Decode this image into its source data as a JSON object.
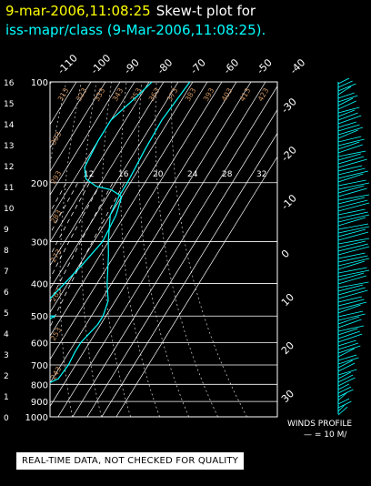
{
  "header": {
    "timestamp": "9-mar-2006,11:08:25",
    "plot_label": "Skew-t plot for",
    "station_line": "iss-mapr/class (9-Mar-2006,11:08:25)."
  },
  "disclaimer": "REAL-TIME DATA, NOT CHECKED FOR QUALITY",
  "winds_profile": {
    "label": "WINDS PROFILE",
    "legend": "— = 10 M/"
  },
  "colors": {
    "profile": "#00ffff",
    "grid": "#ffffff",
    "dry_adiabat": "#c89060",
    "header_timestamp": "#ffff00"
  },
  "chart_data": {
    "type": "line",
    "pressure_labels": [
      100,
      200,
      300,
      400,
      500,
      600,
      700,
      800,
      900,
      1000
    ],
    "height_km_labels": [
      16,
      15,
      14,
      13,
      12,
      11,
      10,
      9,
      8,
      7,
      6,
      5,
      4,
      3,
      2,
      1,
      0
    ],
    "temp_top_labels": [
      "-110",
      "-100",
      "-90",
      "-80",
      "-70",
      "-60",
      "-50",
      "-40"
    ],
    "temp_right_labels": [
      "-30",
      "-20",
      "-10",
      "0",
      "10",
      "20",
      "30"
    ],
    "temp_right_values": [
      -30,
      -20,
      -10,
      0,
      10,
      20,
      30
    ],
    "mixing_ratio_labels": [
      "12",
      "16",
      "20",
      "24",
      "28",
      "32"
    ],
    "mixing_ratio_values": [
      12,
      16,
      20,
      24,
      28,
      32
    ],
    "theta_e_labels": [
      "313",
      "323",
      "333",
      "343",
      "353",
      "363",
      "373",
      "383",
      "393",
      "403",
      "413",
      "423"
    ],
    "dry_adiabat_labels": [
      "303",
      "293",
      "283",
      "273",
      "263",
      "253",
      "243"
    ],
    "dry_adiabat_values": [
      303,
      293,
      283,
      273,
      263,
      253,
      243
    ],
    "series": [
      {
        "values": [
          [
            -30,
            700
          ],
          [
            -27,
            735
          ],
          [
            -24,
            775
          ],
          [
            -21,
            800
          ],
          [
            -20,
            805
          ],
          [
            -21,
            803
          ],
          [
            -22,
            800
          ],
          [
            -16,
            770
          ],
          [
            -15,
            700
          ],
          [
            -16,
            640
          ],
          [
            -16,
            600
          ],
          [
            -12,
            530
          ],
          [
            -12,
            500
          ],
          [
            -15,
            450
          ],
          [
            -23,
            400
          ],
          [
            -34,
            330
          ],
          [
            -40,
            300
          ],
          [
            -50,
            250
          ],
          [
            -52,
            220
          ],
          [
            -52,
            200
          ],
          [
            -54,
            160
          ],
          [
            -55,
            130
          ],
          [
            -52,
            100
          ]
        ]
      },
      {
        "values": [
          [
            -38,
            800
          ],
          [
            -40,
            700
          ],
          [
            -43,
            660
          ],
          [
            -48,
            620
          ],
          [
            -60,
            600
          ],
          [
            -60,
            560
          ],
          [
            -52,
            530
          ],
          [
            -45,
            500
          ],
          [
            -60,
            500
          ],
          [
            -70,
            500
          ],
          [
            -70,
            520
          ],
          [
            -62,
            520
          ],
          [
            -58,
            470
          ],
          [
            -54,
            420
          ],
          [
            -48,
            350
          ],
          [
            -44,
            300
          ],
          [
            -46,
            250
          ],
          [
            -50,
            220
          ],
          [
            -60,
            210
          ],
          [
            -72,
            205
          ],
          [
            -82,
            195
          ],
          [
            -88,
            180
          ],
          [
            -90,
            150
          ],
          [
            -90,
            130
          ],
          [
            -82,
            110
          ],
          [
            -78,
            100
          ]
        ]
      }
    ]
  }
}
